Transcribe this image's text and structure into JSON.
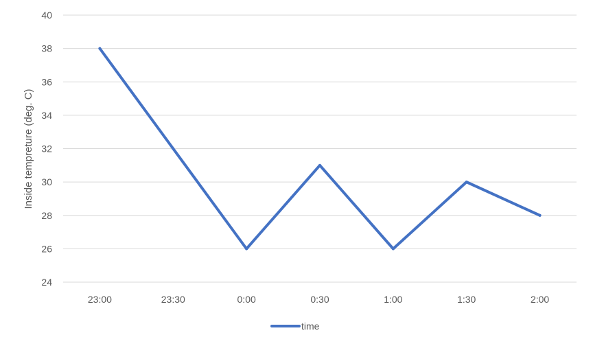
{
  "chart_data": {
    "type": "line",
    "categories": [
      "23:00",
      "23:30",
      "0:00",
      "0:30",
      "1:00",
      "1:30",
      "2:00"
    ],
    "series": [
      {
        "name": "time",
        "values": [
          38,
          32,
          26,
          31,
          26,
          30,
          28
        ],
        "color": "#4472C4"
      }
    ],
    "ylabel": "Inside tempreture (deg. C)",
    "xlabel": "",
    "ylim": [
      24,
      40
    ],
    "yticks": [
      24,
      26,
      28,
      30,
      32,
      34,
      36,
      38,
      40
    ],
    "grid": true,
    "legend": "bottom"
  }
}
